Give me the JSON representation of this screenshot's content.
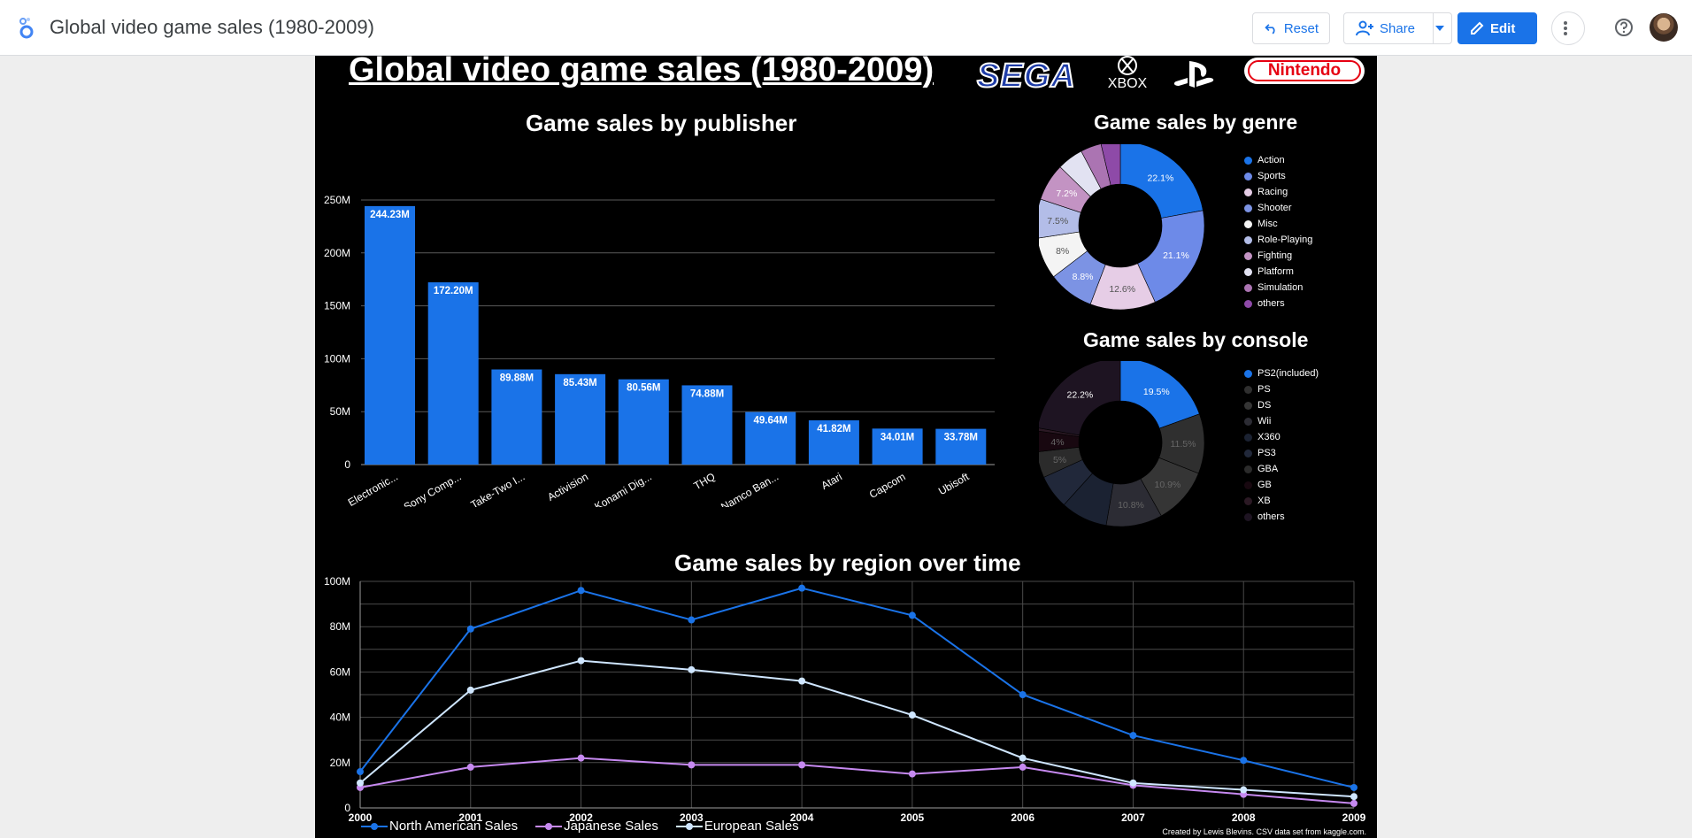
{
  "app": {
    "title": "Global video game sales (1980-2009)",
    "buttons": {
      "reset": "Reset",
      "share": "Share",
      "edit": "Edit"
    }
  },
  "report": {
    "title": "Global video game sales (1980-2009)",
    "logos": {
      "sega": "SEGA",
      "xbox": "XBOX",
      "nintendo": "Nintendo"
    },
    "credit": "Created by Lewis Blevins. CSV data set from kaggle.com."
  },
  "chart_data": [
    {
      "type": "bar",
      "title": "Game sales by publisher",
      "categories": [
        "Electronic...",
        "Sony Comp...",
        "Take-Two I...",
        "Activision",
        "Konami Dig...",
        "THQ",
        "Namco Ban...",
        "Atari",
        "Capcom",
        "Ubisoft"
      ],
      "values": [
        244.23,
        172.2,
        89.88,
        85.43,
        80.56,
        74.88,
        49.64,
        41.82,
        34.01,
        33.78
      ],
      "data_labels": [
        "244.23M",
        "172.20M",
        "89.88M",
        "85.43M",
        "80.56M",
        "74.88M",
        "49.64M",
        "41.82M",
        "34.01M",
        "33.78M"
      ],
      "yticks": [
        "0",
        "50M",
        "100M",
        "150M",
        "200M",
        "250M"
      ],
      "ylim": [
        0,
        250
      ],
      "color": "#1a73e8"
    },
    {
      "type": "pie",
      "title": "Game sales by genre",
      "labels": [
        "Action",
        "Sports",
        "Racing",
        "Shooter",
        "Misc",
        "Role-Playing",
        "Fighting",
        "Platform",
        "Simulation",
        "others"
      ],
      "values": [
        22.1,
        21.1,
        12.6,
        8.8,
        8.0,
        7.5,
        7.2,
        5.0,
        4.0,
        3.7
      ],
      "slice_labels": [
        "22.1%",
        "21.1%",
        "12.6%",
        "8.8%",
        "8%",
        "7.5%",
        "7.2%",
        "",
        "",
        ""
      ],
      "colors": [
        "#1a73e8",
        "#6d8ae8",
        "#e6cde6",
        "#7c93e4",
        "#f4f4f4",
        "#b3bde8",
        "#c393c3",
        "#e2e2f2",
        "#ab74b2",
        "#8e4aa8"
      ],
      "legend": "right"
    },
    {
      "type": "pie",
      "title": "Game sales by console",
      "labels": [
        "PS2(included)",
        "PS",
        "DS",
        "Wii",
        "X360",
        "PS3",
        "GBA",
        "GB",
        "XB",
        "others"
      ],
      "values": [
        19.5,
        11.5,
        10.9,
        10.8,
        9.0,
        6.5,
        5.0,
        4.0,
        0.6,
        22.2
      ],
      "slice_labels": [
        "19.5%",
        "11.5%",
        "10.9%",
        "10.8%",
        "",
        "",
        "5%",
        "4%",
        "",
        "22.2%"
      ],
      "colors": [
        "#1a73e8",
        "#2f2f2f",
        "#353535",
        "#2c2c34",
        "#1b2232",
        "#21283a",
        "#2b2b2b",
        "#180810",
        "#2b1924",
        "#1e1422"
      ],
      "legend": "right"
    },
    {
      "type": "line",
      "title": "Game sales by region over time",
      "x": [
        "2000",
        "2001",
        "2002",
        "2003",
        "2004",
        "2005",
        "2006",
        "2007",
        "2008",
        "2009"
      ],
      "yticks": [
        "0",
        "20M",
        "40M",
        "60M",
        "80M",
        "100M"
      ],
      "ylim": [
        0,
        100
      ],
      "series": [
        {
          "name": "North American Sales",
          "color": "#1a73e8",
          "values": [
            16,
            79,
            96,
            83,
            97,
            85,
            50,
            32,
            21,
            9
          ]
        },
        {
          "name": "Japanese Sales",
          "color": "#c689f0",
          "values": [
            9,
            18,
            22,
            19,
            19,
            15,
            18,
            10,
            6,
            2
          ]
        },
        {
          "name": "European Sales",
          "color": "#cfe6ff",
          "values": [
            11,
            52,
            65,
            61,
            56,
            41,
            22,
            11,
            8,
            5
          ]
        }
      ],
      "grid": true,
      "legend": "bottom"
    }
  ]
}
